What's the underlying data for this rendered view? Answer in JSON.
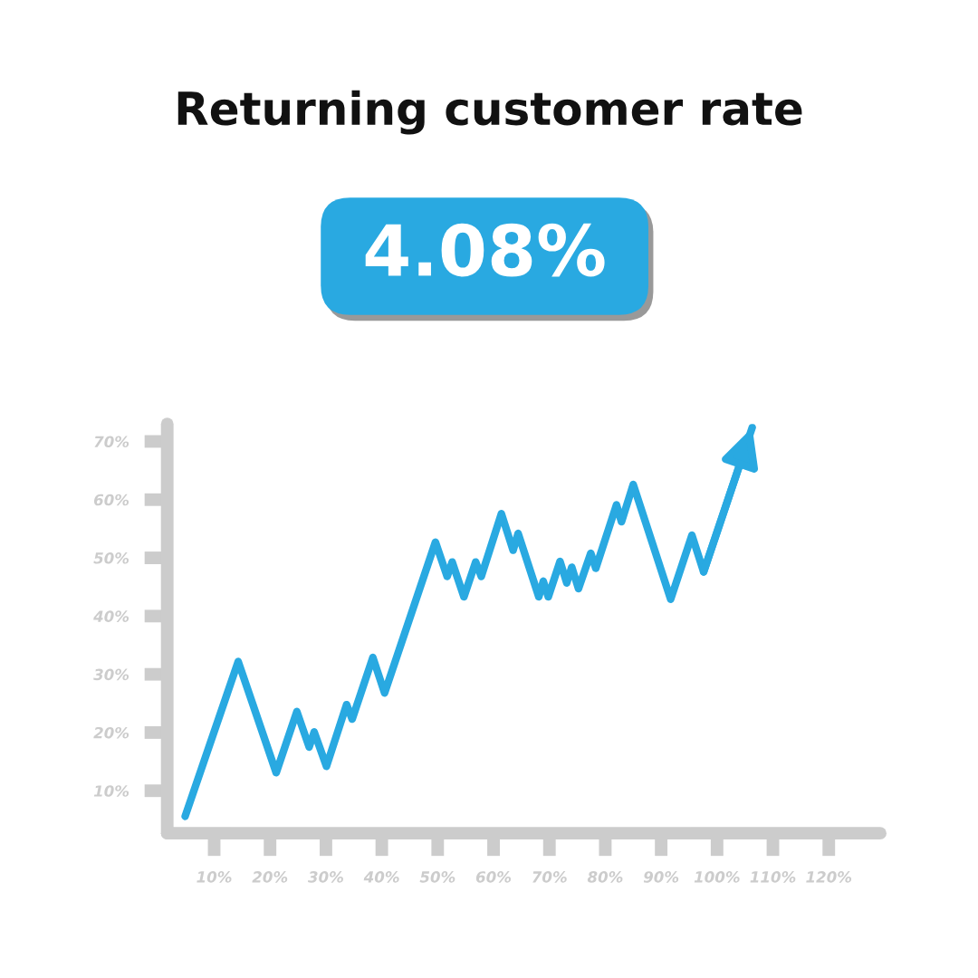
{
  "chart_data": {
    "type": "line",
    "title": "Returning customer rate",
    "subtitle": "4.08%",
    "x": [
      4.8,
      14.3,
      21.1,
      24.8,
      27.0,
      27.9,
      30.1,
      33.7,
      34.7,
      38.4,
      40.5,
      49.6,
      51.7,
      52.6,
      54.7,
      56.8,
      57.8,
      61.4,
      63.5,
      64.4,
      68.1,
      68.9,
      69.8,
      71.9,
      73.1,
      74.0,
      75.2,
      77.4,
      78.3,
      82.0,
      82.9,
      85.0,
      91.7,
      95.5,
      97.6,
      106.3
    ],
    "series": [
      {
        "color": "#29a9e1",
        "values": [
          5.6,
          32.2,
          13.1,
          23.6,
          17.5,
          20.1,
          14.2,
          24.8,
          22.3,
          32.9,
          26.8,
          52.7,
          46.8,
          49.3,
          43.3,
          49.3,
          46.8,
          57.6,
          51.3,
          54.2,
          43.3,
          46.0,
          43.3,
          49.4,
          45.7,
          48.4,
          44.7,
          50.8,
          48.2,
          59.1,
          56.2,
          62.6,
          42.9,
          53.9,
          47.6,
          72.4
        ]
      }
    ],
    "xlim": [
      1.6,
      129.2
    ],
    "ylim": [
      2.7,
      73
    ],
    "xticks": [
      {
        "value": 10,
        "label": "10%"
      },
      {
        "value": 20,
        "label": "20%"
      },
      {
        "value": 30,
        "label": "30%"
      },
      {
        "value": 40,
        "label": "40%"
      },
      {
        "value": 50,
        "label": "50%"
      },
      {
        "value": 60,
        "label": "60%"
      },
      {
        "value": 70,
        "label": "70%"
      },
      {
        "value": 80,
        "label": "80%"
      },
      {
        "value": 90,
        "label": "90%"
      },
      {
        "value": 100,
        "label": "100%"
      },
      {
        "value": 110,
        "label": "110%"
      },
      {
        "value": 120,
        "label": "120%"
      }
    ],
    "yticks": [
      {
        "value": 10,
        "label": "10%"
      },
      {
        "value": 20,
        "label": "20%"
      },
      {
        "value": 30,
        "label": "30%"
      },
      {
        "value": 40,
        "label": "40%"
      },
      {
        "value": 50,
        "label": "50%"
      },
      {
        "value": 60,
        "label": "60%"
      },
      {
        "value": 70,
        "label": "70%"
      }
    ],
    "grid": false,
    "marker": "none",
    "line_style": "solid"
  }
}
